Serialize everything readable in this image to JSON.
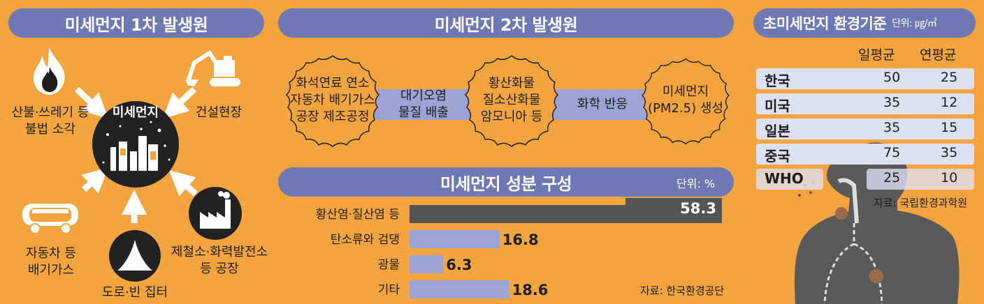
{
  "panel1": {
    "title": "미세먼지 1차 발생원",
    "center_label": "미세먼지",
    "sources": [
      {
        "label": "산불·쓰레기 등",
        "label2": "불법 소각",
        "icon": "fire-icon"
      },
      {
        "label": "건설현장",
        "icon": "excavator-icon"
      },
      {
        "label": "자동차 등",
        "label2": "배기가스",
        "icon": "tanker-truck-icon"
      },
      {
        "label": "도로·빈 집터",
        "icon": "dust-pile-icon"
      },
      {
        "label": "제철소·화력발전소",
        "label2": "등 공장",
        "icon": "factory-icon"
      }
    ]
  },
  "panel2": {
    "title": "미세먼지 2차 발생원",
    "flow": {
      "step1": [
        "화석연료 연소",
        "자동차 배기가스",
        "공장 제조공정"
      ],
      "arrow1": [
        "대기오염",
        "물질 배출"
      ],
      "step2": [
        "황산화물",
        "질소산화물",
        "암모니아 등"
      ],
      "arrow2": [
        "화학 반응"
      ],
      "step3": [
        "미세먼지",
        "(PM2.5) 생성"
      ]
    }
  },
  "composition": {
    "title": "미세먼지 성분 구성",
    "unit": "단위: %",
    "source": "자료: 한국환경공단"
  },
  "standards": {
    "title": "초미세먼지 환경기준",
    "unit": "단위: ㎍/㎥",
    "col_daily": "일평균",
    "col_annual": "연평균",
    "rows": [
      {
        "country": "한국",
        "daily": "50",
        "annual": "25"
      },
      {
        "country": "미국",
        "daily": "35",
        "annual": "12"
      },
      {
        "country": "일본",
        "daily": "35",
        "annual": "15"
      },
      {
        "country": "중국",
        "daily": "75",
        "annual": "35"
      },
      {
        "country": "WHO",
        "daily": "25",
        "annual": "10"
      }
    ],
    "source": "자료: 국립환경과학원"
  },
  "colors": {
    "background": "#f4a43e",
    "accent": "#6d78b4",
    "bar": "#9aa3d4",
    "bar_highlight": "#555555",
    "dark": "#222222",
    "body": "#5a5a5a"
  },
  "chart_data": {
    "type": "bar",
    "orientation": "horizontal",
    "title": "미세먼지 성분 구성",
    "categories": [
      "황산염·질산염 등",
      "탄소류와 검댕",
      "광물",
      "기타"
    ],
    "values": [
      58.3,
      16.8,
      6.3,
      18.6
    ],
    "value_labels": [
      "58.3",
      "16.8",
      "6.3",
      "18.6"
    ],
    "unit": "%",
    "xlim": [
      0,
      60
    ]
  }
}
